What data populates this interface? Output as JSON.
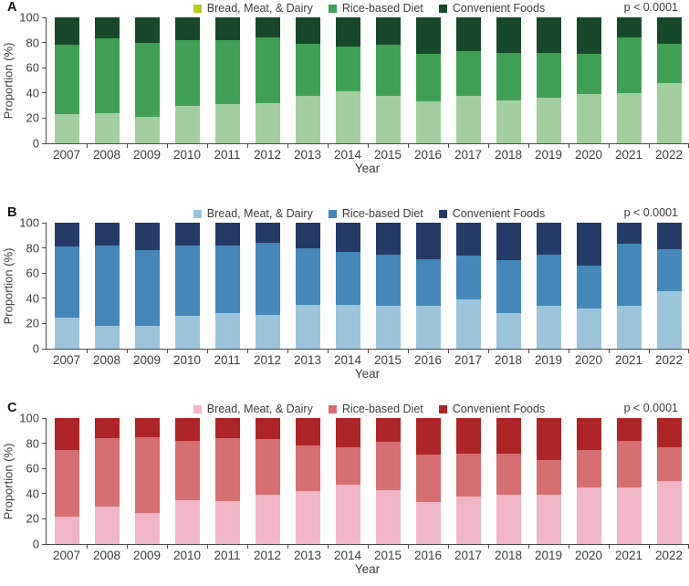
{
  "figure": {
    "kind": "three-panel stacked bar figure",
    "panels_order": [
      "A",
      "B",
      "C"
    ]
  },
  "chart_data": [
    {
      "type": "bar",
      "stacked": true,
      "panel": "A",
      "annotation": "p < 0.0001",
      "xlabel": "Year",
      "ylabel": "Proportion (%)",
      "ylim": [
        0,
        100
      ],
      "yticks": [
        0,
        20,
        40,
        60,
        80,
        100
      ],
      "legend_position": "top",
      "grid": false,
      "categories": [
        "2007",
        "2008",
        "2009",
        "2010",
        "2011",
        "2012",
        "2013",
        "2014",
        "2015",
        "2016",
        "2017",
        "2018",
        "2019",
        "2020",
        "2021",
        "2022"
      ],
      "series": [
        {
          "name": "Bread, Meat, & Dairy",
          "legend_color": "#b5cc20",
          "bar_color": "#a3cfa0",
          "values": [
            23,
            24,
            21,
            30,
            31,
            32,
            38,
            41,
            38,
            33,
            38,
            34,
            36,
            39,
            40,
            48
          ]
        },
        {
          "name": "Rice-based Diet",
          "legend_color": "#3fa055",
          "bar_color": "#3fa055",
          "values": [
            55,
            59,
            59,
            52,
            51,
            52,
            41,
            36,
            40,
            38,
            35,
            38,
            36,
            32,
            44,
            31
          ]
        },
        {
          "name": "Convenient Foods",
          "legend_color": "#17482a",
          "bar_color": "#17482a",
          "values": [
            22,
            17,
            20,
            18,
            18,
            16,
            21,
            23,
            22,
            29,
            27,
            28,
            28,
            29,
            16,
            21
          ]
        }
      ]
    },
    {
      "type": "bar",
      "stacked": true,
      "panel": "B",
      "annotation": "p < 0.0001",
      "xlabel": "Year",
      "ylabel": "Proportion (%)",
      "ylim": [
        0,
        100
      ],
      "yticks": [
        0,
        20,
        40,
        60,
        80,
        100
      ],
      "legend_position": "top",
      "grid": false,
      "categories": [
        "2007",
        "2008",
        "2009",
        "2010",
        "2011",
        "2012",
        "2013",
        "2014",
        "2015",
        "2016",
        "2017",
        "2018",
        "2019",
        "2020",
        "2021",
        "2022"
      ],
      "series": [
        {
          "name": "Bread, Meat, & Dairy",
          "legend_color": "#9cc5dc",
          "bar_color": "#9cc5dc",
          "values": [
            25,
            18,
            18,
            26,
            28,
            27,
            35,
            35,
            34,
            34,
            39,
            28,
            34,
            32,
            34,
            46
          ]
        },
        {
          "name": "Rice-based Diet",
          "legend_color": "#4487b8",
          "bar_color": "#4487b8",
          "values": [
            56,
            64,
            60,
            56,
            54,
            57,
            45,
            42,
            41,
            37,
            35,
            42,
            41,
            34,
            49,
            33
          ]
        },
        {
          "name": "Convenient Foods",
          "legend_color": "#253a66",
          "bar_color": "#253a66",
          "values": [
            19,
            18,
            22,
            18,
            18,
            16,
            20,
            23,
            25,
            29,
            26,
            30,
            25,
            34,
            17,
            21
          ]
        }
      ]
    },
    {
      "type": "bar",
      "stacked": true,
      "panel": "C",
      "annotation": "p < 0.0001",
      "xlabel": "Year",
      "ylabel": "Proportion (%)",
      "ylim": [
        0,
        100
      ],
      "yticks": [
        0,
        20,
        40,
        60,
        80,
        100
      ],
      "legend_position": "top",
      "grid": false,
      "categories": [
        "2007",
        "2008",
        "2009",
        "2010",
        "2011",
        "2012",
        "2013",
        "2014",
        "2015",
        "2016",
        "2017",
        "2018",
        "2019",
        "2020",
        "2021",
        "2022"
      ],
      "series": [
        {
          "name": "Bread, Meat, & Dairy",
          "legend_color": "#f0b6c8",
          "bar_color": "#f0b6c8",
          "values": [
            22,
            30,
            25,
            35,
            34,
            39,
            42,
            47,
            43,
            33,
            38,
            39,
            39,
            45,
            45,
            50
          ]
        },
        {
          "name": "Rice-based Diet",
          "legend_color": "#d66f72",
          "bar_color": "#d66f72",
          "values": [
            53,
            54,
            60,
            47,
            50,
            44,
            36,
            30,
            38,
            38,
            34,
            33,
            28,
            30,
            37,
            27
          ]
        },
        {
          "name": "Convenient Foods",
          "legend_color": "#ad2527",
          "bar_color": "#ad2527",
          "values": [
            25,
            16,
            15,
            18,
            16,
            17,
            22,
            23,
            19,
            29,
            28,
            28,
            33,
            25,
            18,
            23
          ]
        }
      ]
    }
  ]
}
